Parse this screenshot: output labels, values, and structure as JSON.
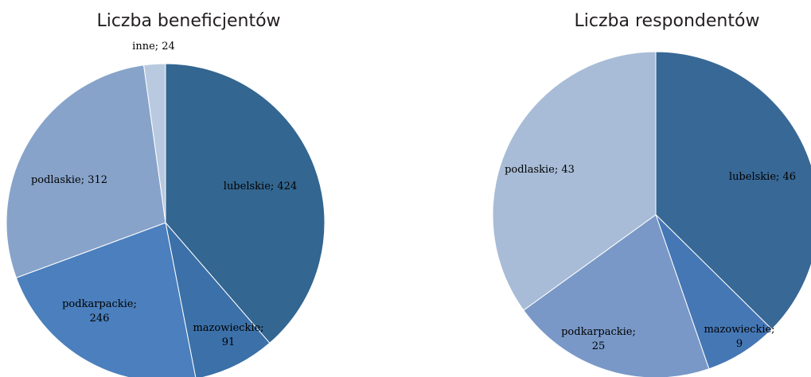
{
  "chart_data": [
    {
      "type": "pie",
      "title": "Liczba beneficjentów",
      "slices": [
        {
          "name": "lubelskie",
          "value": 424,
          "label": "lubelskie; 424",
          "color": "#336690"
        },
        {
          "name": "mazowieckie",
          "value": 91,
          "label_lines": [
            "mazowieckie;",
            "91"
          ],
          "color": "#3b70a8"
        },
        {
          "name": "podkarpackie",
          "value": 246,
          "label_lines": [
            "podkarpackie;",
            "246"
          ],
          "color": "#4b7fbd"
        },
        {
          "name": "podlaskie",
          "value": 312,
          "label": "podlaskie; 312",
          "color": "#87a3ca"
        },
        {
          "name": "inne",
          "value": 24,
          "label": "inne; 24",
          "color": "#b9cae0"
        }
      ]
    },
    {
      "type": "pie",
      "title": "Liczba respondentów",
      "slices": [
        {
          "name": "lubelskie",
          "value": 46,
          "label": "lubelskie; 46",
          "color": "#386896"
        },
        {
          "name": "mazowieckie",
          "value": 9,
          "label_lines": [
            "mazowieckie;",
            "9"
          ],
          "color": "#4577b5"
        },
        {
          "name": "podkarpackie",
          "value": 25,
          "label_lines": [
            "podkarpackie;",
            "25"
          ],
          "color": "#7998c7"
        },
        {
          "name": "podlaskie",
          "value": 43,
          "label": "podlaskie; 43",
          "color": "#a8bcd7"
        }
      ]
    }
  ]
}
